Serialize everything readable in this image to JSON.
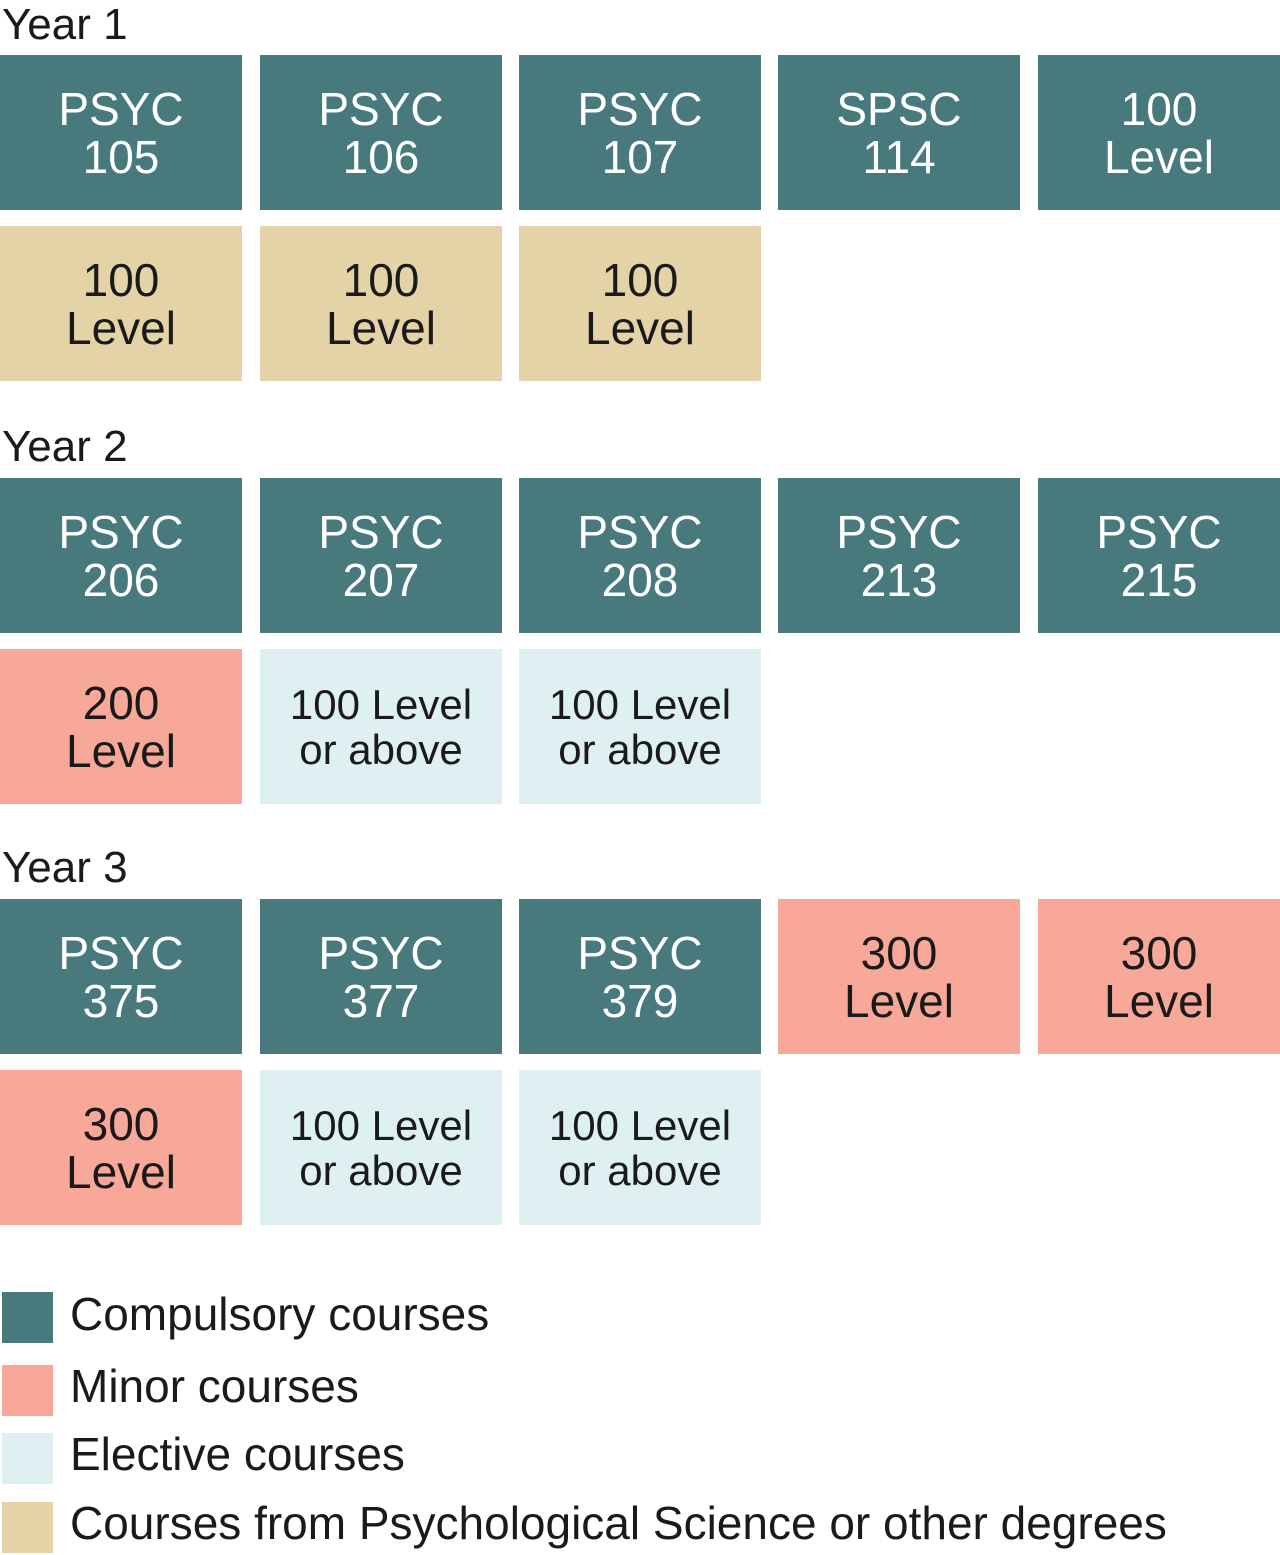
{
  "colors": {
    "compulsory": "#487a7d",
    "minor": "#f7a898",
    "elective": "#dff0f3",
    "other": "#e5d3a8"
  },
  "years": [
    {
      "title": "Year 1",
      "rows": [
        [
          {
            "type": "compulsory",
            "lines": [
              "PSYC",
              "105"
            ]
          },
          {
            "type": "compulsory",
            "lines": [
              "PSYC",
              "106"
            ]
          },
          {
            "type": "compulsory",
            "lines": [
              "PSYC",
              "107"
            ]
          },
          {
            "type": "compulsory",
            "lines": [
              "SPSC",
              "114"
            ]
          },
          {
            "type": "compulsory",
            "lines": [
              "100",
              "Level"
            ]
          }
        ],
        [
          {
            "type": "other",
            "lines": [
              "100",
              "Level"
            ]
          },
          {
            "type": "other",
            "lines": [
              "100",
              "Level"
            ]
          },
          {
            "type": "other",
            "lines": [
              "100",
              "Level"
            ]
          }
        ]
      ]
    },
    {
      "title": "Year 2",
      "rows": [
        [
          {
            "type": "compulsory",
            "lines": [
              "PSYC",
              "206"
            ]
          },
          {
            "type": "compulsory",
            "lines": [
              "PSYC",
              "207"
            ]
          },
          {
            "type": "compulsory",
            "lines": [
              "PSYC",
              "208"
            ]
          },
          {
            "type": "compulsory",
            "lines": [
              "PSYC",
              "213"
            ]
          },
          {
            "type": "compulsory",
            "lines": [
              "PSYC",
              "215"
            ]
          }
        ],
        [
          {
            "type": "minor",
            "lines": [
              "200",
              "Level"
            ]
          },
          {
            "type": "elective",
            "lines": [
              "100 Level",
              "or above"
            ]
          },
          {
            "type": "elective",
            "lines": [
              "100 Level",
              "or above"
            ]
          }
        ]
      ]
    },
    {
      "title": "Year 3",
      "rows": [
        [
          {
            "type": "compulsory",
            "lines": [
              "PSYC",
              "375"
            ]
          },
          {
            "type": "compulsory",
            "lines": [
              "PSYC",
              "377"
            ]
          },
          {
            "type": "compulsory",
            "lines": [
              "PSYC",
              "379"
            ]
          },
          {
            "type": "minor",
            "lines": [
              "300",
              "Level"
            ]
          },
          {
            "type": "minor",
            "lines": [
              "300",
              "Level"
            ]
          }
        ],
        [
          {
            "type": "minor",
            "lines": [
              "300",
              "Level"
            ]
          },
          {
            "type": "elective",
            "lines": [
              "100 Level",
              "or above"
            ]
          },
          {
            "type": "elective",
            "lines": [
              "100 Level",
              "or above"
            ]
          }
        ]
      ]
    }
  ],
  "legend": [
    {
      "type": "compulsory",
      "label": "Compulsory courses"
    },
    {
      "type": "minor",
      "label": "Minor courses"
    },
    {
      "type": "elective",
      "label": "Elective courses"
    },
    {
      "type": "other",
      "label": "Courses from Psychological Science or other degrees"
    }
  ]
}
